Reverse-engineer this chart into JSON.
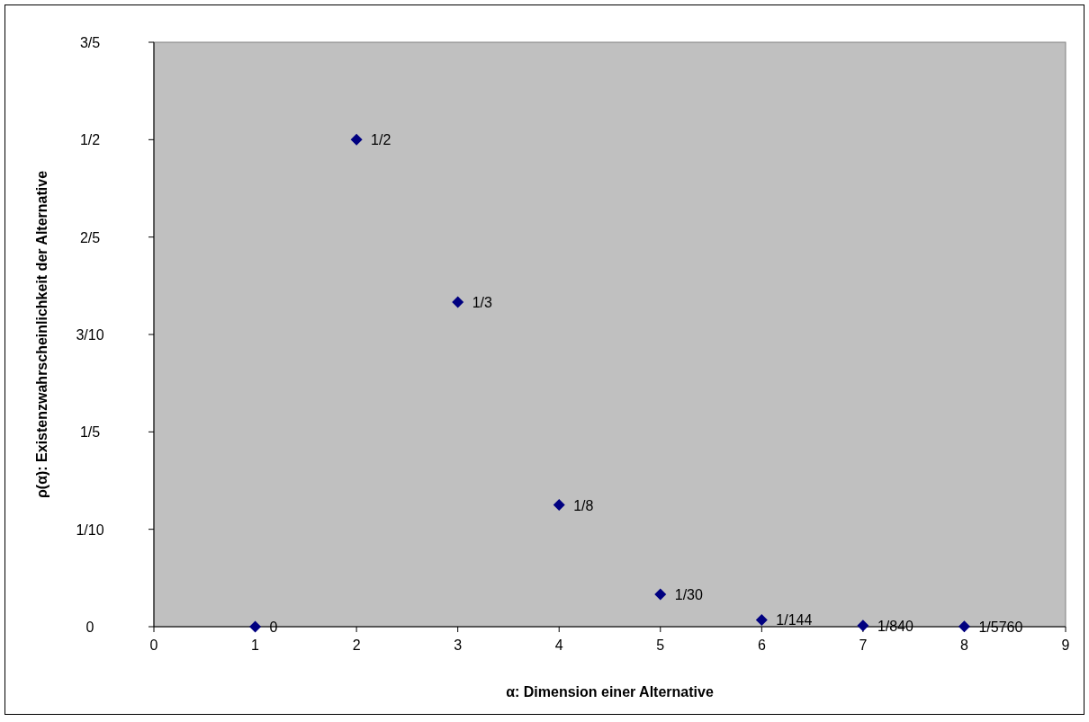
{
  "chart_data": {
    "type": "scatter",
    "xlabel": "α: Dimension einer Alternative",
    "ylabel": "ρ(α): Existenzwahrscheinlichkeit der Alternative",
    "x": [
      1,
      2,
      3,
      4,
      5,
      6,
      7,
      8
    ],
    "series": [
      {
        "color": "#000080",
        "values": [
          0,
          0.5,
          0.3333,
          0.125,
          0.0333,
          0.00694,
          0.00119,
          0.000174
        ],
        "value_labels": [
          "0",
          "1/2",
          "1/3",
          "1/8",
          "1/30",
          "1/144",
          "1/840",
          "1/5760"
        ]
      }
    ],
    "xlim": [
      0,
      9
    ],
    "xticks": [
      0,
      1,
      2,
      3,
      4,
      5,
      6,
      7,
      8,
      9
    ],
    "ylim": [
      0,
      0.6
    ],
    "yticks": [
      {
        "value": 0,
        "label": "0"
      },
      {
        "value": 0.1,
        "label": "1/10"
      },
      {
        "value": 0.2,
        "label": "1/5"
      },
      {
        "value": 0.3,
        "label": "3/10"
      },
      {
        "value": 0.4,
        "label": "2/5"
      },
      {
        "value": 0.5,
        "label": "1/2"
      },
      {
        "value": 0.6,
        "label": "3/5"
      }
    ],
    "grid": false,
    "marker": "diamond"
  }
}
